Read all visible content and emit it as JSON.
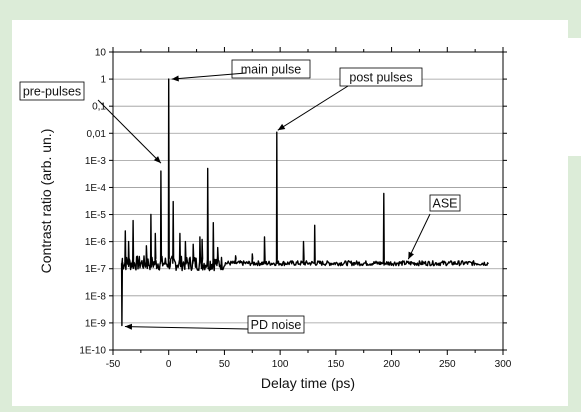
{
  "chart_data": {
    "type": "line",
    "title": "",
    "xlabel": "Delay time (ps)",
    "ylabel": "Contrast ratio (arb. un.)",
    "xlim": [
      -50,
      300
    ],
    "ylim_log10": [
      -10,
      1
    ],
    "yscale": "log",
    "grid": "horizontal",
    "x_ticks": [
      -50,
      0,
      50,
      100,
      150,
      200,
      250,
      300
    ],
    "x_tick_labels": [
      "-50",
      "0",
      "50",
      "100",
      "150",
      "200",
      "250",
      "300"
    ],
    "y_ticks": [
      10,
      1,
      0.1,
      0.01,
      0.001,
      0.0001,
      1e-05,
      1e-06,
      1e-07,
      1e-08,
      1e-09,
      1e-10
    ],
    "y_tick_labels": [
      "10",
      "1",
      "0,1",
      "0,01",
      "1E-3",
      "1E-4",
      "1E-5",
      "1E-6",
      "1E-7",
      "1E-8",
      "1E-9",
      "1E-10"
    ],
    "series": [
      {
        "color": "#000000",
        "baseline": 1.6e-07,
        "x_range": [
          -42,
          287
        ],
        "peaks": [
          {
            "x": -42,
            "y": 8e-10
          },
          {
            "x": -39,
            "y": 2.5e-06
          },
          {
            "x": -36,
            "y": 1e-06
          },
          {
            "x": -32,
            "y": 6e-06
          },
          {
            "x": -20,
            "y": 7e-07
          },
          {
            "x": -16,
            "y": 1e-05
          },
          {
            "x": -12,
            "y": 2e-06
          },
          {
            "x": -7,
            "y": 0.0004
          },
          {
            "x": 0,
            "y": 1
          },
          {
            "x": 4,
            "y": 3e-05
          },
          {
            "x": 10,
            "y": 2e-06
          },
          {
            "x": 15,
            "y": 1e-06
          },
          {
            "x": 22,
            "y": 8e-07
          },
          {
            "x": 28,
            "y": 1.5e-06
          },
          {
            "x": 30,
            "y": 1.2e-06
          },
          {
            "x": 35,
            "y": 0.0005
          },
          {
            "x": 40,
            "y": 5e-06
          },
          {
            "x": 44,
            "y": 6e-07
          },
          {
            "x": 60,
            "y": 3e-07
          },
          {
            "x": 75,
            "y": 3.5e-07
          },
          {
            "x": 86,
            "y": 1.5e-06
          },
          {
            "x": 97,
            "y": 0.011
          },
          {
            "x": 121,
            "y": 1e-06
          },
          {
            "x": 131,
            "y": 4e-06
          },
          {
            "x": 193,
            "y": 6e-05
          }
        ]
      }
    ],
    "annotations": [
      {
        "text": "main pulse",
        "target": [
          0,
          1
        ]
      },
      {
        "text": "pre-pulses",
        "targets": [
          [
            -7,
            0.0004
          ]
        ]
      },
      {
        "text": "post pulses",
        "target": [
          97,
          0.011
        ]
      },
      {
        "text": "ASE",
        "target": [
          215,
          1.6e-07
        ]
      },
      {
        "text": "PD noise",
        "target": [
          -42,
          8e-10
        ]
      }
    ]
  }
}
